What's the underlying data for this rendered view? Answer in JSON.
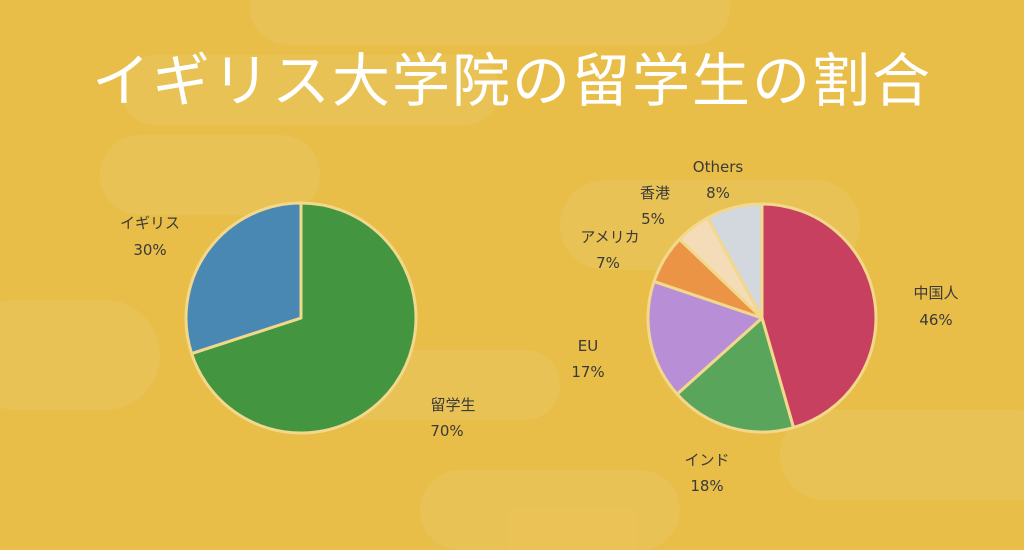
{
  "title": "イギリス大学院の留学生の割合",
  "colors": {
    "background": "#e8bd48",
    "stroke": "#f2d88a"
  },
  "chart_data": [
    {
      "type": "pie",
      "title": "",
      "start_angle_deg": 0,
      "direction": "clockwise",
      "slices": [
        {
          "label": "留学生",
          "value": 70,
          "value_label": "70%",
          "color": "#43963f"
        },
        {
          "label": "イギリス",
          "value": 30,
          "value_label": "30%",
          "color": "#4a88b4"
        }
      ]
    },
    {
      "type": "pie",
      "title": "",
      "start_angle_deg": 0,
      "direction": "clockwise",
      "slices": [
        {
          "label": "中国人",
          "value": 46,
          "value_label": "46%",
          "color": "#c8405f"
        },
        {
          "label": "インド",
          "value": 18,
          "value_label": "18%",
          "color": "#59a55c"
        },
        {
          "label": "EU",
          "value": 17,
          "value_label": "17%",
          "color": "#b88fd6"
        },
        {
          "label": "アメリカ",
          "value": 7,
          "value_label": "7%",
          "color": "#ec9446"
        },
        {
          "label": "香港",
          "value": 5,
          "value_label": "5%",
          "color": "#f5dcb8"
        },
        {
          "label": "Others",
          "value": 8,
          "value_label": "8%",
          "color": "#d3d7de"
        }
      ]
    }
  ]
}
